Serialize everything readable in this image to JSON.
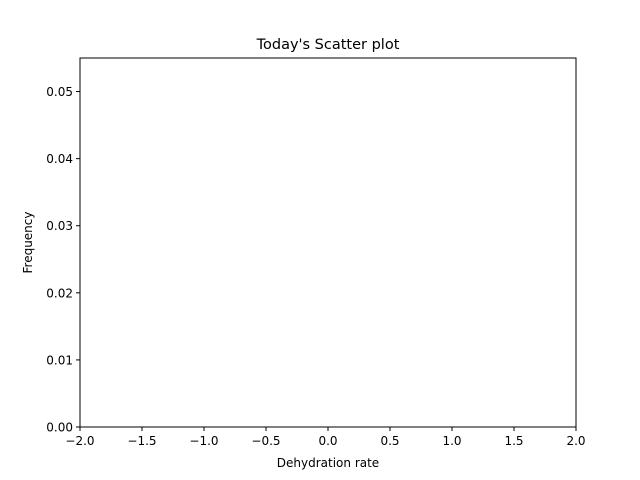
{
  "chart_data": {
    "type": "scatter",
    "title": "Today's Scatter plot",
    "xlabel": "Dehydration rate",
    "ylabel": "Frequency",
    "xlim": [
      -2.0,
      2.0
    ],
    "ylim": [
      0.0,
      0.055
    ],
    "xticks": [
      -2.0,
      -1.5,
      -1.0,
      -0.5,
      0.0,
      0.5,
      1.0,
      1.5,
      2.0
    ],
    "xtick_labels": [
      "−2.0",
      "−1.5",
      "−1.0",
      "−0.5",
      "0.0",
      "0.5",
      "1.0",
      "1.5",
      "2.0"
    ],
    "yticks": [
      0.0,
      0.01,
      0.02,
      0.03,
      0.04,
      0.05
    ],
    "ytick_labels": [
      "0.00",
      "0.01",
      "0.02",
      "0.03",
      "0.04",
      "0.05"
    ],
    "series": [
      {
        "x": [],
        "y": []
      }
    ],
    "grid": false,
    "legend": "none"
  }
}
